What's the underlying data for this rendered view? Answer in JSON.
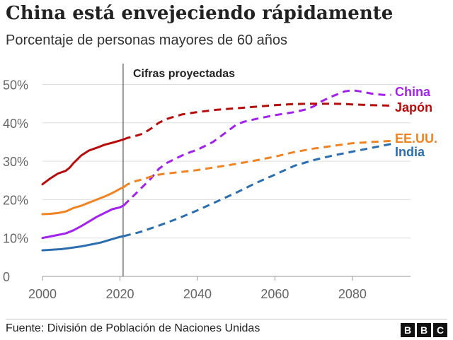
{
  "header": {
    "title": "China está envejeciendo rápidamente",
    "subtitle": "Porcentaje de personas mayores de 60 años"
  },
  "footer": {
    "source": "Fuente: División de Población de Naciones Unidas",
    "logo_letters": [
      "B",
      "B",
      "C"
    ]
  },
  "chart_data": {
    "type": "line",
    "title": "China está envejeciendo rápidamente",
    "subtitle": "Porcentaje de personas mayores de 60 años",
    "xlim": [
      2000,
      2095
    ],
    "ylim": [
      0,
      52
    ],
    "x_ticks": [
      2000,
      2020,
      2040,
      2060,
      2080
    ],
    "x_tick_labels": [
      "2000",
      "2020",
      "2040",
      "2060",
      "2080"
    ],
    "y_ticks": [
      0,
      10,
      20,
      30,
      40,
      50
    ],
    "y_tick_labels": [
      "0",
      "10%",
      "20%",
      "30%",
      "40%",
      "50%"
    ],
    "grid": "horizontal",
    "projection_start": 2021,
    "projection_label": "Cifras proyectadas",
    "legend": "inline-right",
    "series": [
      {
        "name": "China",
        "color": "#a222ee",
        "x": [
          2000,
          2004,
          2006,
          2008,
          2010,
          2012,
          2014,
          2016,
          2018,
          2020,
          2021,
          2022,
          2024,
          2026,
          2028,
          2030,
          2032,
          2034,
          2036,
          2038,
          2040,
          2042,
          2044,
          2046,
          2048,
          2050,
          2052,
          2055,
          2060,
          2065,
          2068,
          2070,
          2072,
          2075,
          2078,
          2080,
          2082,
          2085,
          2088,
          2090
        ],
        "y": [
          10,
          10.8,
          11.2,
          12,
          13.1,
          14.3,
          15.5,
          16.5,
          17.5,
          18,
          18.5,
          19.5,
          21.5,
          23.5,
          25.5,
          28,
          29.5,
          30.5,
          31.5,
          32.3,
          33,
          34,
          35,
          36.5,
          38,
          39.5,
          40.3,
          41,
          42,
          42.8,
          43.5,
          44.3,
          45.6,
          47,
          48.2,
          48.5,
          48.2,
          47.6,
          47.3,
          47.3
        ]
      },
      {
        "name": "Japón",
        "color": "#b80c0c",
        "x": [
          2000,
          2002,
          2004,
          2006,
          2007,
          2008,
          2009,
          2010,
          2012,
          2014,
          2016,
          2018,
          2020,
          2021,
          2022,
          2024,
          2026,
          2028,
          2030,
          2032,
          2034,
          2036,
          2038,
          2040,
          2045,
          2050,
          2055,
          2060,
          2065,
          2070,
          2075,
          2078,
          2080,
          2085,
          2090
        ],
        "y": [
          24,
          25.5,
          26.8,
          27.5,
          28.3,
          29.5,
          30.5,
          31.5,
          32.8,
          33.5,
          34.3,
          34.8,
          35.4,
          35.7,
          36.1,
          36.6,
          37.2,
          38.5,
          40,
          41,
          41.6,
          42.2,
          42.5,
          42.8,
          43.4,
          43.8,
          44.2,
          44.6,
          44.9,
          45,
          45,
          44.9,
          44.8,
          44.6,
          44.5
        ]
      },
      {
        "name": "EE.UU.",
        "color": "#f08322",
        "x": [
          2000,
          2002,
          2004,
          2006,
          2008,
          2010,
          2012,
          2014,
          2016,
          2018,
          2020,
          2021,
          2022,
          2024,
          2026,
          2028,
          2030,
          2032,
          2035,
          2040,
          2045,
          2050,
          2055,
          2060,
          2065,
          2070,
          2075,
          2080,
          2085,
          2090
        ],
        "y": [
          16.2,
          16.3,
          16.5,
          16.9,
          17.8,
          18.4,
          19.2,
          20,
          20.8,
          21.7,
          22.8,
          23.3,
          24,
          24.8,
          25.3,
          26,
          26.5,
          26.8,
          27.1,
          27.7,
          28.5,
          29.3,
          30.2,
          31.2,
          32.4,
          33.3,
          34,
          34.7,
          35,
          35.3
        ]
      },
      {
        "name": "India",
        "color": "#2c6fb0",
        "x": [
          2000,
          2005,
          2010,
          2015,
          2020,
          2021,
          2025,
          2030,
          2035,
          2040,
          2045,
          2050,
          2055,
          2060,
          2065,
          2070,
          2075,
          2080,
          2085,
          2090
        ],
        "y": [
          6.8,
          7.1,
          7.8,
          8.8,
          10.3,
          10.5,
          11.5,
          13.2,
          15.1,
          17.2,
          19.5,
          21.8,
          24.3,
          26.5,
          28.8,
          30.3,
          31.5,
          32.5,
          33.5,
          34.5
        ]
      }
    ]
  }
}
